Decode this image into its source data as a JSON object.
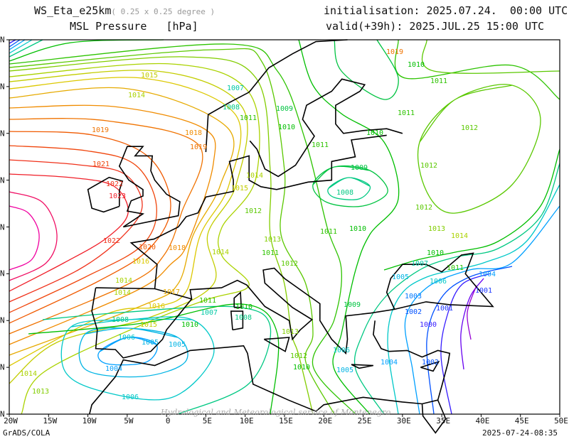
{
  "header": {
    "model": "WS_Eta_e25km",
    "resolution": "( 0.25 x 0.25 degree )",
    "field": "MSL Pressure",
    "unit": "[hPa]",
    "init_label": "initialisation:",
    "init_value": "2025.07.24.  00:00 UTC",
    "valid_label": "valid(+39h):",
    "valid_value": "2025.JUL.25 15:00 UTC"
  },
  "axes": {
    "lon_ticks": [
      "20W",
      "15W",
      "10W",
      "5W",
      "0",
      "5E",
      "10E",
      "15E",
      "20E",
      "25E",
      "30E",
      "35E",
      "40E",
      "45E",
      "50E"
    ],
    "lat_ticks": [
      "N",
      "N",
      "N",
      "N",
      "N",
      "N",
      "N",
      "N",
      "N"
    ]
  },
  "footer": {
    "software": "GrADS/COLA",
    "timestamp": "2025-07-24-08:35",
    "watermark": "Hydrological and Meteorological service of Montenegro"
  },
  "contour_labels": [
    "1019",
    "1010",
    "1011",
    "1007",
    "1008",
    "1009",
    "1010",
    "1011",
    "1011",
    "1012",
    "1010",
    "1011",
    "1009",
    "1008",
    "1012",
    "1014",
    "1015",
    "1019",
    "1018",
    "1019",
    "1021",
    "1022",
    "1023",
    "1014",
    "1015",
    "1012",
    "1011",
    "1010",
    "1013",
    "1011",
    "1012",
    "1014",
    "1022",
    "1020",
    "1018",
    "1016",
    "1014",
    "1014",
    "1017",
    "1016",
    "1015",
    "1008",
    "1006",
    "1005",
    "1010",
    "1011",
    "1007",
    "1010",
    "1008",
    "1005",
    "1004",
    "1006",
    "1014",
    "1013",
    "1013",
    "1012",
    "1010",
    "1006",
    "1005",
    "1004",
    "1002",
    "1000",
    "1001",
    "1003",
    "1002",
    "1005",
    "1006",
    "1007",
    "1010",
    "1011",
    "1004",
    "1001",
    "1012",
    "1013",
    "1014",
    "1009"
  ]
}
